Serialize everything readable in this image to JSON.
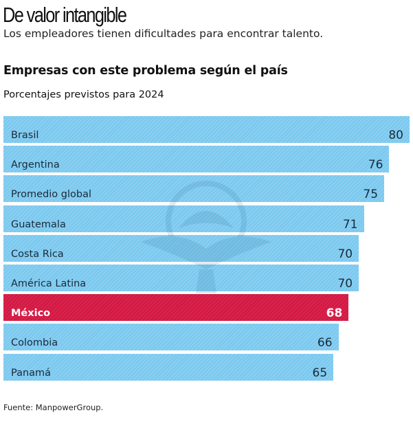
{
  "header": {
    "title": "De valor intangible",
    "subtitle": "Los empleadores tienen dificultades para encontrar talento."
  },
  "chart_data": {
    "type": "bar",
    "orientation": "horizontal",
    "title": "Empresas con este problema según el país",
    "subtitle": "Porcentajes previstos para 2024",
    "xlabel": "",
    "ylabel": "",
    "categories": [
      "Brasil",
      "Argentina",
      "Promedio global",
      "Guatemala",
      "Costa Rica",
      "América Latina",
      "México",
      "Colombia",
      "Panamá"
    ],
    "values": [
      80,
      76,
      75,
      71,
      70,
      70,
      68,
      66,
      65
    ],
    "value_labels": [
      "80",
      "76",
      "75",
      "71",
      "70",
      "70",
      "68",
      "66",
      "65"
    ],
    "highlight": "México",
    "xlim": [
      0,
      80
    ],
    "grid": false,
    "legend": "none",
    "colors": {
      "default": "#7cc9ef",
      "highlight": "#d41a44"
    }
  },
  "footer": {
    "source": "Fuente: ManpowerGroup."
  }
}
